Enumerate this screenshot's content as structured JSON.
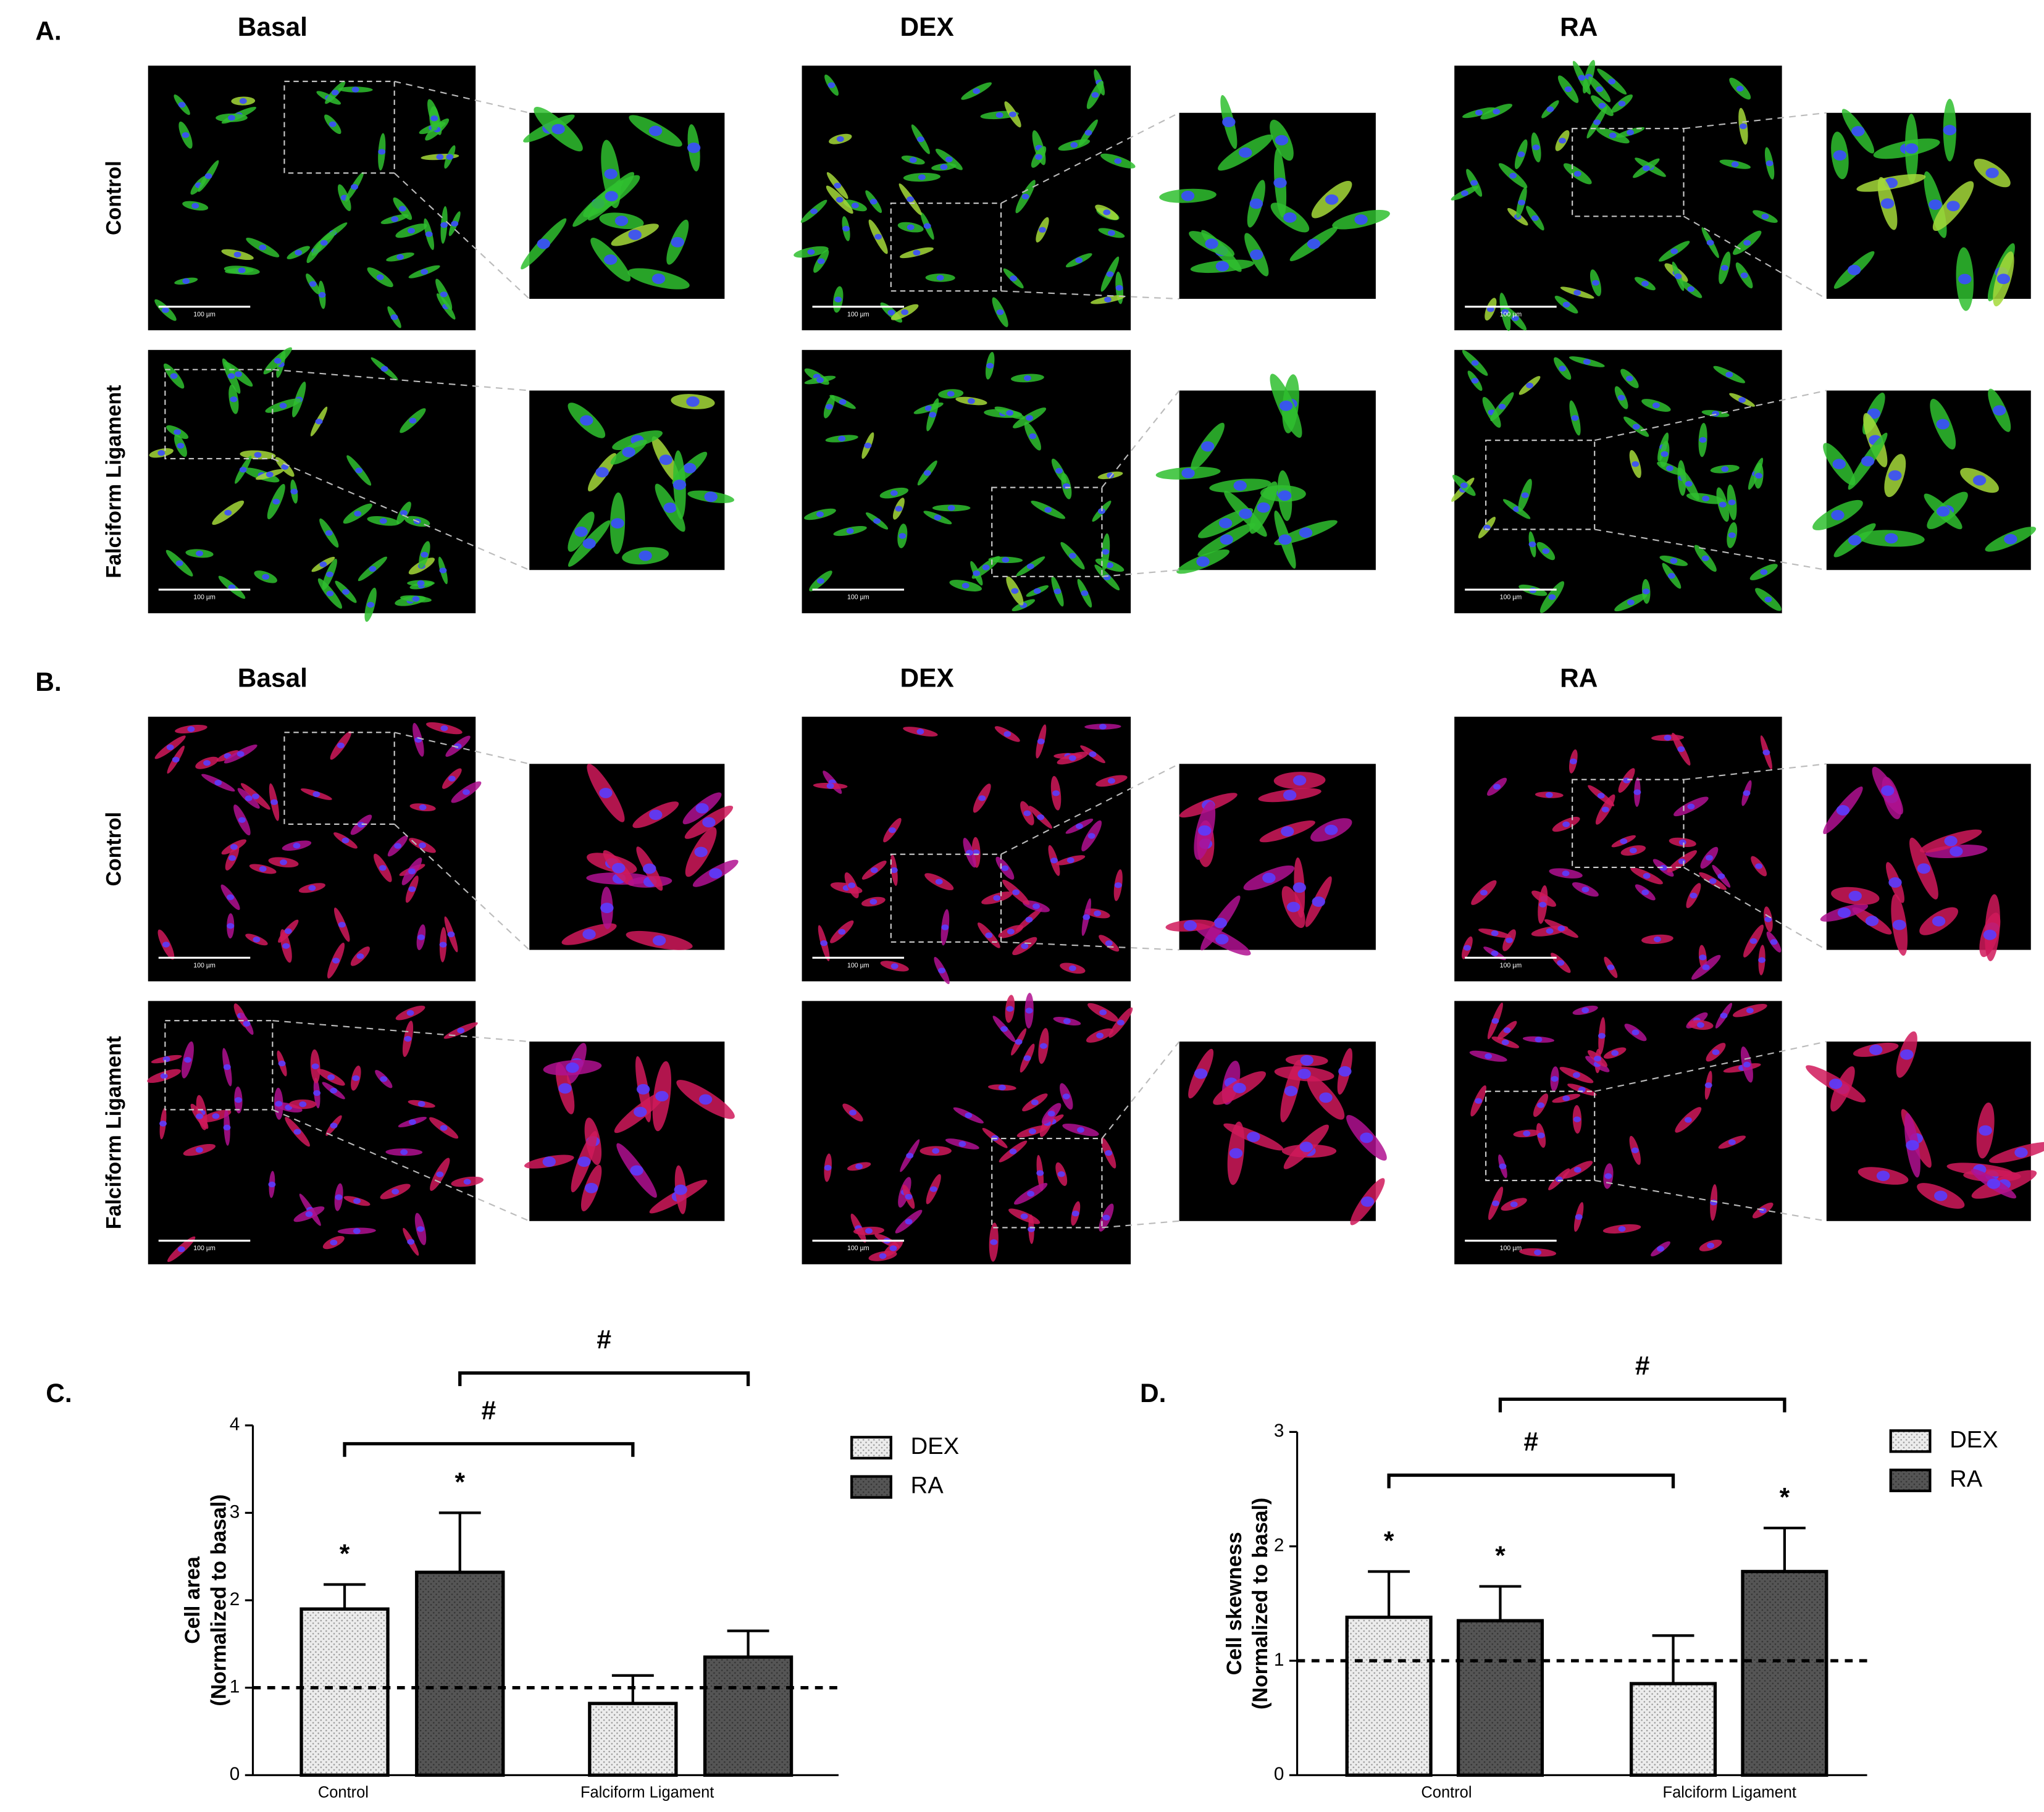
{
  "figure_panels": [
    {
      "label": "A.",
      "columns": [
        "Basal",
        "DEX",
        "RA"
      ],
      "rows": [
        "Control",
        "Falciform Ligament"
      ]
    },
    {
      "label": "B.",
      "columns": [
        "Basal",
        "DEX",
        "RA"
      ],
      "rows": [
        "Control",
        "Falciform Ligament"
      ]
    }
  ],
  "scale_bar": "100 µm",
  "chart_data": [
    {
      "type": "bar",
      "panel": "C.",
      "y_label": [
        "Cell area",
        "(Normalized to basal)"
      ],
      "categories": [
        "Control",
        "Falciform Ligament"
      ],
      "series": [
        {
          "name": "DEX",
          "color": "#e6e6e6",
          "pattern": "dots",
          "values": [
            1.9,
            0.82
          ],
          "error": [
            0.28,
            0.32
          ],
          "annotations": [
            "*",
            null
          ]
        },
        {
          "name": "RA",
          "color": "#555555",
          "pattern": "dots",
          "values": [
            2.32,
            1.35
          ],
          "error": [
            0.68,
            0.3
          ],
          "annotations": [
            "*",
            null
          ]
        }
      ],
      "ylim": [
        0,
        4
      ],
      "yticks": [
        0,
        1,
        2,
        3,
        4
      ],
      "reference_line": 1,
      "brackets": [
        {
          "series": 0,
          "label": "#"
        },
        {
          "series": 1,
          "label": "#"
        }
      ],
      "legend": "right"
    },
    {
      "type": "bar",
      "panel": "D.",
      "y_label": [
        "Cell skewness",
        "(Normalized to basal)"
      ],
      "categories": [
        "Control",
        "Falciform Ligament"
      ],
      "series": [
        {
          "name": "DEX",
          "color": "#e6e6e6",
          "pattern": "dots",
          "values": [
            1.38,
            0.8
          ],
          "error": [
            0.4,
            0.42
          ],
          "annotations": [
            "*",
            null
          ]
        },
        {
          "name": "RA",
          "color": "#555555",
          "pattern": "dots",
          "values": [
            1.35,
            1.78
          ],
          "error": [
            0.3,
            0.38
          ],
          "annotations": [
            "*",
            "*"
          ]
        }
      ],
      "ylim": [
        0,
        3
      ],
      "yticks": [
        0,
        1,
        2,
        3
      ],
      "reference_line": 1,
      "brackets": [
        {
          "series": 0,
          "label": "#"
        },
        {
          "series": 1,
          "label": "#"
        }
      ],
      "legend": "right"
    }
  ]
}
